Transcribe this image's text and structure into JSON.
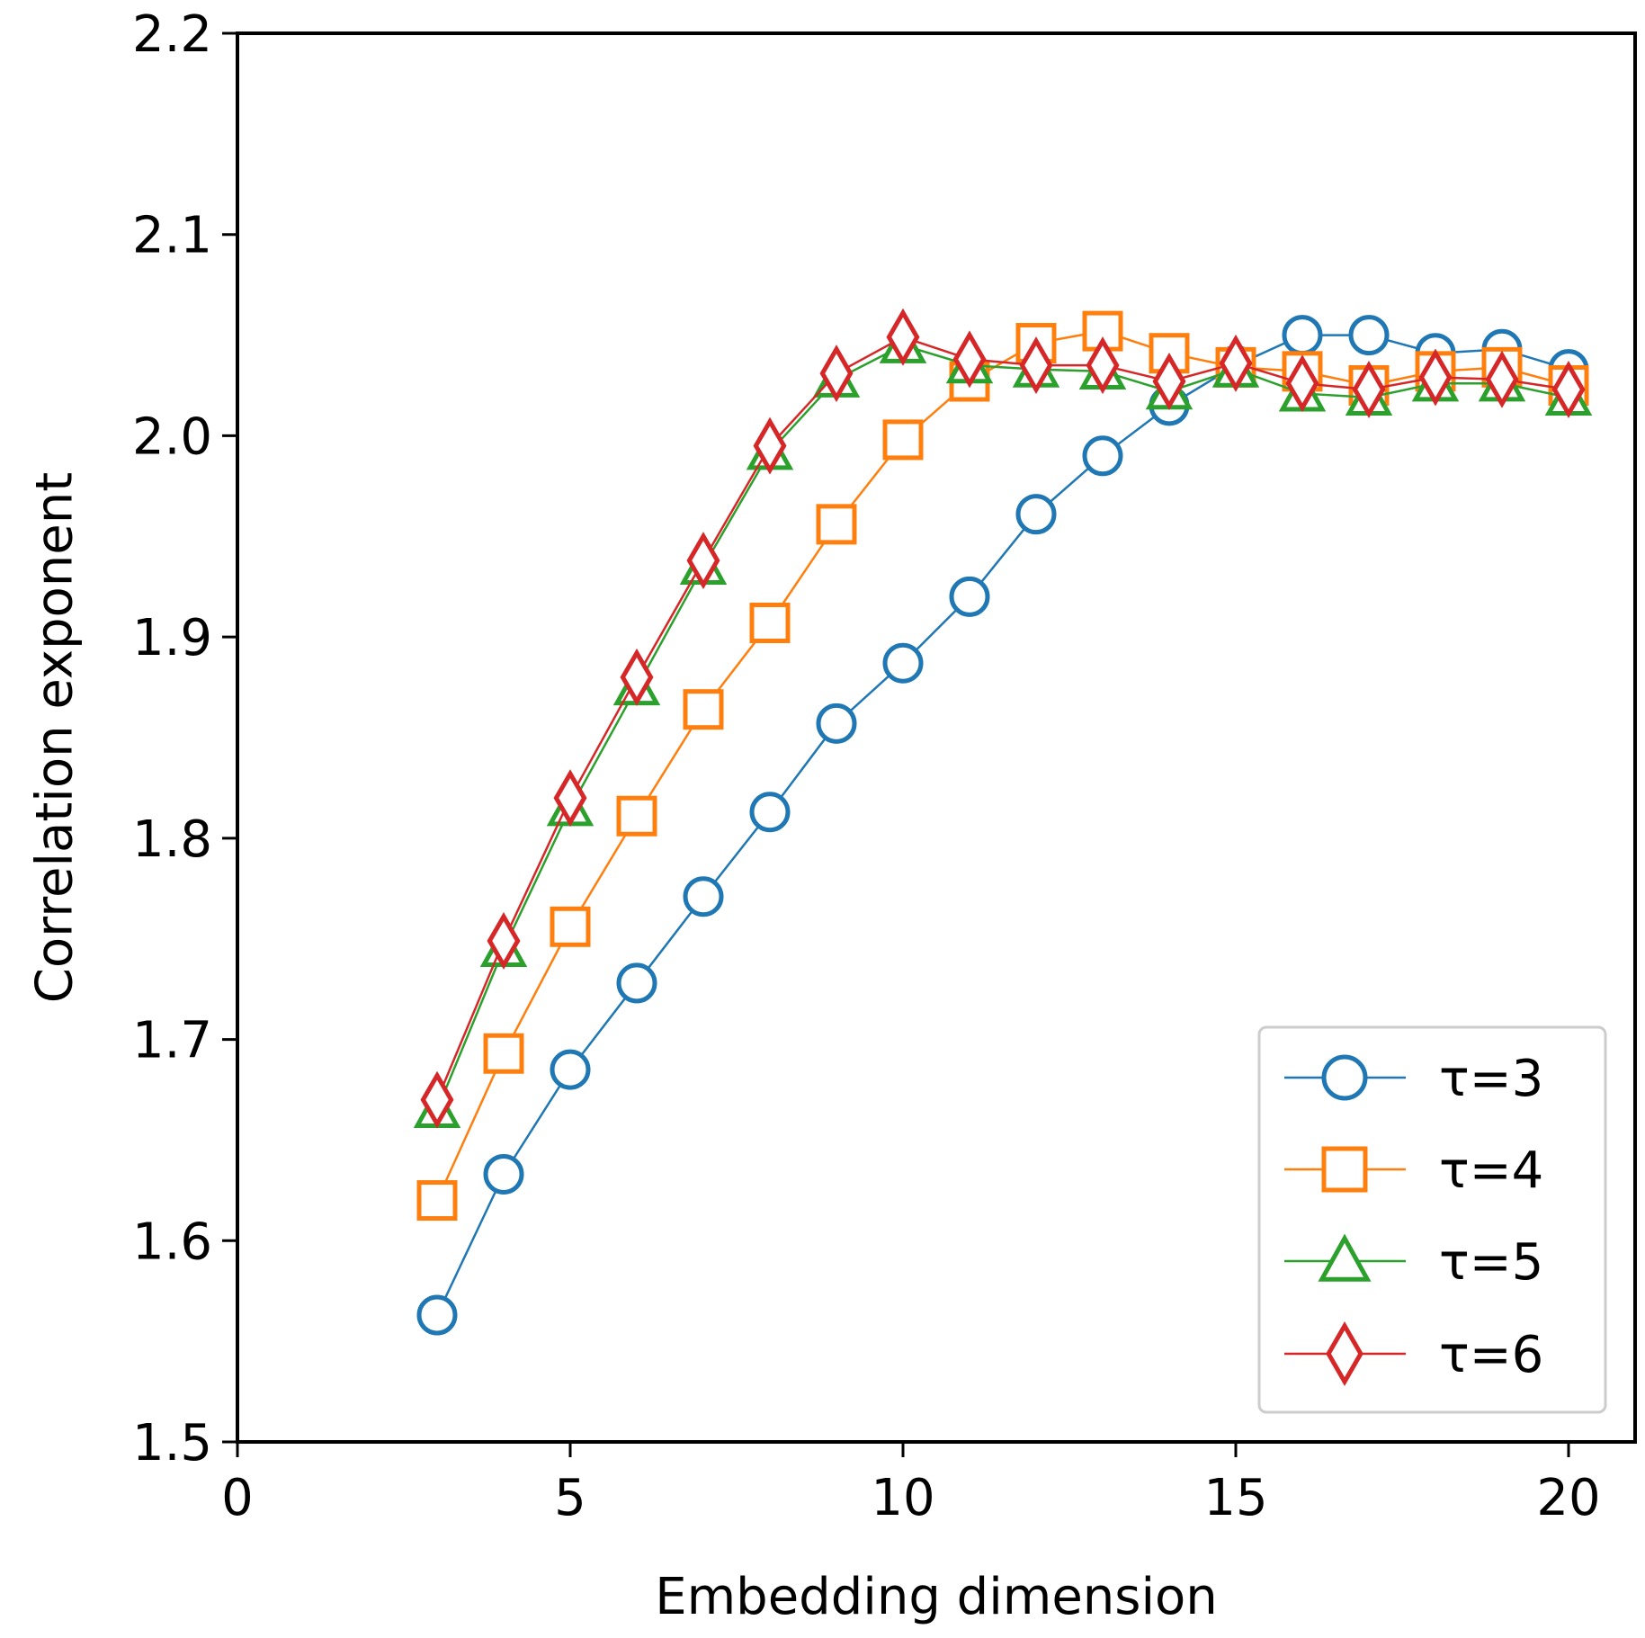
{
  "chart_data": {
    "type": "line",
    "title": "",
    "xlabel": "Embedding dimension",
    "ylabel": "Correlation exponent",
    "xlim": [
      0,
      21
    ],
    "ylim": [
      1.5,
      2.2
    ],
    "xticks": [
      "0",
      "5",
      "10",
      "15",
      "20"
    ],
    "yticks": [
      "1.5",
      "1.6",
      "1.7",
      "1.8",
      "1.9",
      "2.0",
      "2.1",
      "2.2"
    ],
    "grid": false,
    "legend_position": "bottom-right",
    "x": [
      3,
      4,
      5,
      6,
      7,
      8,
      9,
      10,
      11,
      12,
      13,
      14,
      15,
      16,
      17,
      18,
      19,
      20
    ],
    "series": [
      {
        "name": "τ=3",
        "color": "#1f77b4",
        "marker": "circle",
        "values": [
          1.563,
          1.633,
          1.685,
          1.728,
          1.771,
          1.813,
          1.857,
          1.887,
          1.92,
          1.961,
          1.99,
          2.015,
          2.035,
          2.05,
          2.05,
          2.041,
          2.043,
          2.033
        ]
      },
      {
        "name": "τ=4",
        "color": "#ff7f0e",
        "marker": "square",
        "values": [
          1.62,
          1.693,
          1.756,
          1.811,
          1.864,
          1.907,
          1.956,
          1.998,
          2.027,
          2.046,
          2.052,
          2.041,
          2.034,
          2.032,
          2.025,
          2.032,
          2.034,
          2.025
        ]
      },
      {
        "name": "τ=5",
        "color": "#2ca02c",
        "marker": "triangle",
        "values": [
          1.665,
          1.745,
          1.815,
          1.875,
          1.935,
          1.992,
          2.028,
          2.045,
          2.035,
          2.033,
          2.032,
          2.022,
          2.033,
          2.021,
          2.019,
          2.026,
          2.026,
          2.019
        ]
      },
      {
        "name": "τ=6",
        "color": "#d62728",
        "marker": "diamond",
        "values": [
          1.67,
          1.749,
          1.82,
          1.88,
          1.938,
          1.995,
          2.031,
          2.049,
          2.038,
          2.035,
          2.035,
          2.027,
          2.036,
          2.026,
          2.023,
          2.029,
          2.028,
          2.023
        ]
      }
    ]
  }
}
